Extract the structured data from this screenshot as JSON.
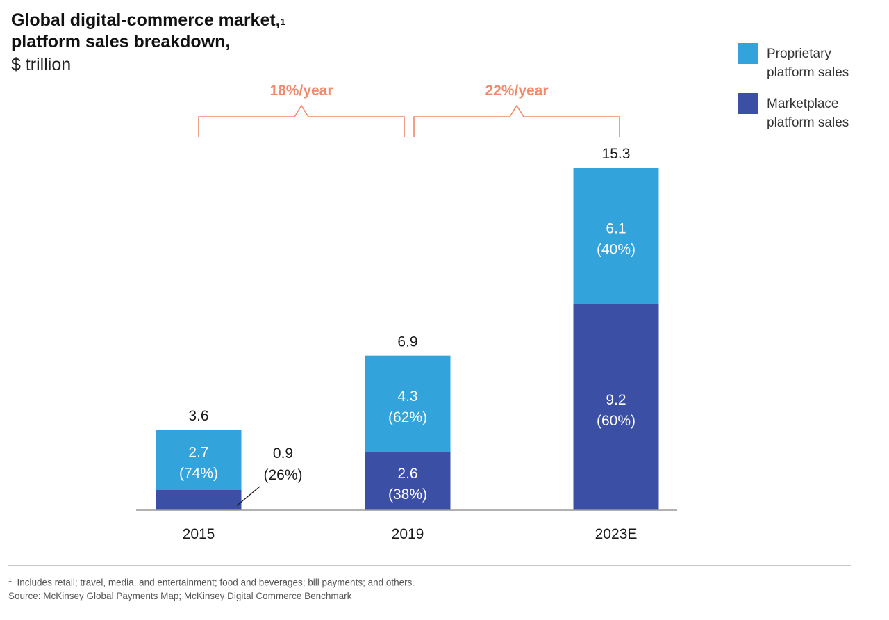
{
  "title": {
    "line1": "Global digital-commerce market,",
    "footnote_mark": "1",
    "line2": "platform sales breakdown,",
    "subtitle": "$ trillion"
  },
  "legend": [
    {
      "series": "proprietary",
      "line1": "Proprietary",
      "line2": "platform sales",
      "color": "#33a3dc"
    },
    {
      "series": "marketplace",
      "line1": "Marketplace",
      "line2": "platform sales",
      "color": "#3b4fa5"
    }
  ],
  "chart_data": {
    "type": "bar",
    "stacked": true,
    "categories": [
      "2015",
      "2019",
      "2023E"
    ],
    "series": [
      {
        "name": "Marketplace platform sales",
        "values": [
          0.9,
          2.6,
          9.2
        ],
        "pct_labels": [
          "(26%)",
          "(38%)",
          "(60%)"
        ],
        "labels": [
          "0.9",
          "2.6",
          "9.2"
        ],
        "color": "#3b4fa5"
      },
      {
        "name": "Proprietary platform sales",
        "values": [
          2.7,
          4.3,
          6.1
        ],
        "pct_labels": [
          "(74%)",
          "(62%)",
          "(40%)"
        ],
        "labels": [
          "2.7",
          "4.3",
          "6.1"
        ],
        "color": "#33a3dc"
      }
    ],
    "totals": [
      "3.6",
      "6.9",
      "15.3"
    ],
    "total_values": [
      3.6,
      6.9,
      15.3
    ],
    "growth_annotations": [
      {
        "label": "18%/year",
        "from": "2015",
        "to": "2019"
      },
      {
        "label": "22%/year",
        "from": "2019",
        "to": "2023E"
      }
    ],
    "growth_color": "#f2896b",
    "ylim": [
      0,
      15.3
    ],
    "grid": false
  },
  "footnote": {
    "mark": "1",
    "text": "Includes retail; travel, media, and entertainment; food and beverages; bill payments; and others.",
    "source": "Source: McKinsey Global Payments Map; McKinsey Digital Commerce Benchmark"
  }
}
